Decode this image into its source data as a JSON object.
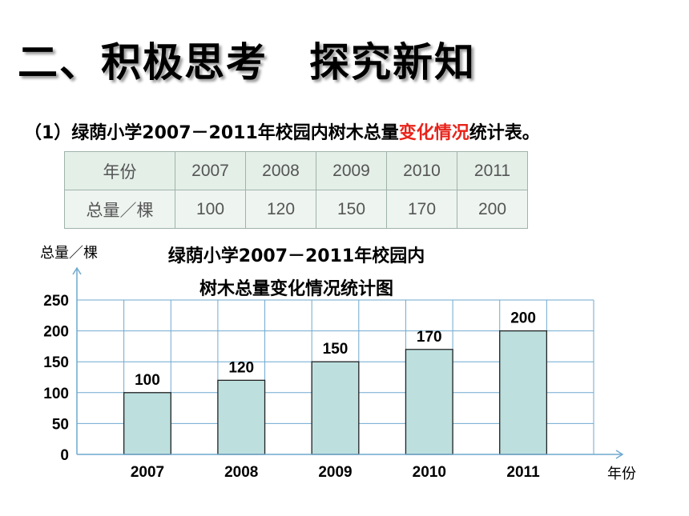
{
  "heading": "二、积极思考　探究新知",
  "subtitle": {
    "pre": "（1）绿荫小学2007－2011年校园内树木总量",
    "highlight": "变化情况",
    "post": "统计表。"
  },
  "table": {
    "row1": [
      "年份",
      "2007",
      "2008",
      "2009",
      "2010",
      "2011"
    ],
    "row2": [
      "总量／棵",
      "100",
      "120",
      "150",
      "170",
      "200"
    ]
  },
  "colors": {
    "bar_fill": "#bde0df",
    "grid": "#6fa9cf",
    "axis": "#6fa9cf",
    "highlight": "#e8231a"
  },
  "chart_data": {
    "type": "bar",
    "title": [
      "绿荫小学2007－2011年校园内",
      "树木总量变化情况统计图"
    ],
    "ylabel": "总量／棵",
    "xlabel": "年份",
    "categories": [
      "2007",
      "2008",
      "2009",
      "2010",
      "2011"
    ],
    "values": [
      100,
      120,
      150,
      170,
      200
    ],
    "yticks": [
      0,
      50,
      100,
      150,
      200,
      250
    ],
    "ylim": [
      0,
      250
    ],
    "grid": true
  }
}
